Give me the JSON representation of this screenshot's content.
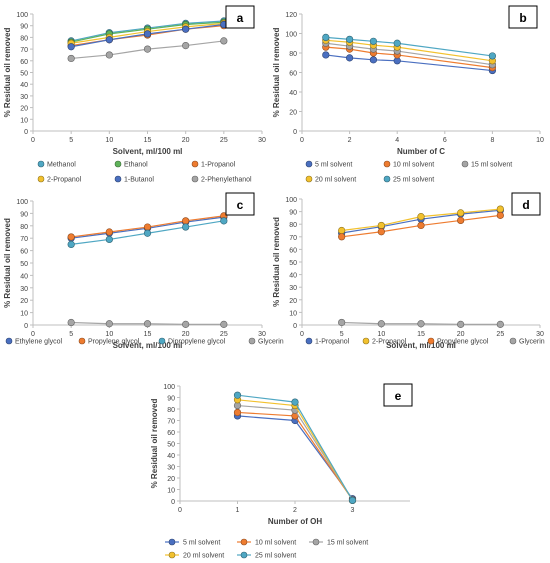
{
  "chart_data": [
    {
      "id": "a",
      "type": "line",
      "panel_label": "a",
      "xlabel": "Solvent, ml/100 ml",
      "ylabel": "% Residual oil removed",
      "xlim": [
        0,
        30
      ],
      "ylim": [
        0,
        100
      ],
      "xticks": [
        0,
        5,
        10,
        15,
        20,
        25,
        30
      ],
      "yticks": [
        0,
        10,
        20,
        30,
        40,
        50,
        60,
        70,
        80,
        90,
        100
      ],
      "grid": false,
      "legend_position": "bottom",
      "x": [
        5,
        10,
        15,
        20,
        25
      ],
      "series": [
        {
          "name": "Methanol",
          "color": "#4fa7c3",
          "values": [
            77,
            84,
            88,
            92,
            94
          ]
        },
        {
          "name": "Ethanol",
          "color": "#5fb35a",
          "values": [
            76,
            83,
            87,
            91,
            93
          ]
        },
        {
          "name": "1-Propanol",
          "color": "#ee7c30",
          "values": [
            73,
            78,
            82,
            87,
            90
          ]
        },
        {
          "name": "2-Propanol",
          "color": "#f2c12e",
          "values": [
            75,
            80,
            85,
            89,
            92
          ]
        },
        {
          "name": "1-Butanol",
          "color": "#4a6fc0",
          "values": [
            72,
            78,
            83,
            87,
            91
          ]
        },
        {
          "name": "2-Phenylethanol",
          "color": "#a5a5a5",
          "values": [
            62,
            65,
            70,
            73,
            77
          ]
        }
      ]
    },
    {
      "id": "b",
      "type": "line",
      "panel_label": "b",
      "xlabel": "Number of C",
      "ylabel": "% Residual oil removed",
      "xlim": [
        0,
        10
      ],
      "ylim": [
        0,
        120
      ],
      "xticks": [
        0,
        2,
        4,
        6,
        8,
        10
      ],
      "yticks": [
        0,
        20,
        40,
        60,
        80,
        100,
        120
      ],
      "grid": false,
      "legend_position": "bottom",
      "x": [
        1,
        2,
        3,
        4,
        8
      ],
      "series": [
        {
          "name": "5 ml solvent",
          "color": "#4a6fc0",
          "values": [
            78,
            75,
            73,
            72,
            62
          ]
        },
        {
          "name": "10 ml solvent",
          "color": "#ee7c30",
          "values": [
            86,
            84,
            80,
            78,
            65
          ]
        },
        {
          "name": "15 ml solvent",
          "color": "#a5a5a5",
          "values": [
            90,
            87,
            84,
            82,
            68
          ]
        },
        {
          "name": "20 ml solvent",
          "color": "#f2c12e",
          "values": [
            93,
            91,
            88,
            86,
            72
          ]
        },
        {
          "name": "25 ml solvent",
          "color": "#4fa7c3",
          "values": [
            96,
            94,
            92,
            90,
            77
          ]
        }
      ]
    },
    {
      "id": "c",
      "type": "line",
      "panel_label": "c",
      "xlabel": "Solvent, ml/100 ml",
      "ylabel": "% Residual oil removed",
      "xlim": [
        0,
        30
      ],
      "ylim": [
        0,
        100
      ],
      "xticks": [
        0,
        5,
        10,
        15,
        20,
        25,
        30
      ],
      "yticks": [
        0,
        10,
        20,
        30,
        40,
        50,
        60,
        70,
        80,
        90,
        100
      ],
      "grid": false,
      "legend_position": "bottom",
      "x": [
        5,
        10,
        15,
        20,
        25
      ],
      "series": [
        {
          "name": "Ethylene glycol",
          "color": "#4a6fc0",
          "values": [
            70,
            74,
            78,
            83,
            87
          ]
        },
        {
          "name": "Propylene glycol",
          "color": "#ee7c30",
          "values": [
            71,
            75,
            79,
            84,
            88
          ]
        },
        {
          "name": "Dipropylene glycol",
          "color": "#4fa7c3",
          "values": [
            65,
            69,
            74,
            79,
            84
          ]
        },
        {
          "name": "Glycerin",
          "color": "#a5a5a5",
          "values": [
            2,
            1,
            1,
            0.5,
            0.5
          ]
        }
      ]
    },
    {
      "id": "d",
      "type": "line",
      "panel_label": "d",
      "xlabel": "Solvent, ml/100 ml",
      "ylabel": "% Residual oil removed",
      "xlim": [
        0,
        30
      ],
      "ylim": [
        0,
        100
      ],
      "xticks": [
        0,
        5,
        10,
        15,
        20,
        25,
        30
      ],
      "yticks": [
        0,
        10,
        20,
        30,
        40,
        50,
        60,
        70,
        80,
        90,
        100
      ],
      "grid": false,
      "legend_position": "bottom",
      "x": [
        5,
        10,
        15,
        20,
        25
      ],
      "series": [
        {
          "name": "1-Propanol",
          "color": "#4a6fc0",
          "values": [
            73,
            78,
            84,
            88,
            91
          ]
        },
        {
          "name": "2-Propanol",
          "color": "#f2c12e",
          "values": [
            75,
            79,
            86,
            89,
            92
          ]
        },
        {
          "name": "Propylene glycol",
          "color": "#ee7c30",
          "values": [
            70,
            74,
            79,
            83,
            87
          ]
        },
        {
          "name": "Glycerin",
          "color": "#a5a5a5",
          "values": [
            2,
            1,
            1,
            0.5,
            0.5
          ]
        }
      ]
    },
    {
      "id": "e",
      "type": "line",
      "panel_label": "e",
      "xlabel": "Number of OH",
      "ylabel": "% Residual oil removed",
      "xlim": [
        0,
        4
      ],
      "ylim": [
        0,
        100
      ],
      "xticks": [
        0,
        1,
        2,
        3
      ],
      "yticks": [
        0,
        10,
        20,
        30,
        40,
        50,
        60,
        70,
        80,
        90,
        100
      ],
      "grid": false,
      "legend_position": "bottom",
      "x": [
        1,
        2,
        3
      ],
      "series": [
        {
          "name": "5 ml solvent",
          "color": "#4a6fc0",
          "values": [
            74,
            70,
            2
          ]
        },
        {
          "name": "10 ml solvent",
          "color": "#ee7c30",
          "values": [
            77,
            74,
            1
          ]
        },
        {
          "name": "15 ml solvent",
          "color": "#a5a5a5",
          "values": [
            83,
            79,
            1
          ]
        },
        {
          "name": "20 ml solvent",
          "color": "#f2c12e",
          "values": [
            88,
            83,
            0.5
          ]
        },
        {
          "name": "25 ml solvent",
          "color": "#4fa7c3",
          "values": [
            92,
            86,
            0.5
          ]
        }
      ]
    }
  ]
}
